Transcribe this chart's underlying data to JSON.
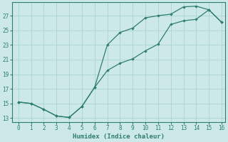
{
  "xlabel": "Humidex (Indice chaleur)",
  "ylabel": "",
  "background_color": "#cce9e7",
  "line_color": "#2e7d6e",
  "grid_color": "#aad4d0",
  "x_line1": [
    0,
    1,
    2,
    3,
    4,
    5,
    6,
    7,
    8,
    9,
    10,
    11,
    12,
    13,
    14,
    15,
    16
  ],
  "y_line1": [
    15.2,
    15.0,
    14.2,
    13.3,
    13.1,
    14.6,
    17.2,
    23.0,
    24.7,
    25.3,
    26.7,
    27.0,
    27.2,
    28.2,
    28.3,
    27.8,
    26.1
  ],
  "x_line2": [
    0,
    1,
    2,
    3,
    4,
    5,
    6,
    7,
    8,
    9,
    10,
    11,
    12,
    13,
    14,
    15,
    16
  ],
  "y_line2": [
    15.2,
    15.0,
    14.2,
    13.3,
    13.1,
    14.6,
    17.2,
    19.5,
    20.5,
    21.1,
    22.2,
    23.1,
    25.8,
    26.3,
    26.5,
    27.8,
    26.1
  ],
  "xlim": [
    0,
    16
  ],
  "ylim": [
    12.5,
    28.8
  ],
  "yticks": [
    13,
    15,
    17,
    19,
    21,
    23,
    25,
    27
  ],
  "xticks": [
    0,
    1,
    2,
    3,
    4,
    5,
    6,
    7,
    8,
    9,
    10,
    11,
    12,
    13,
    14,
    15,
    16
  ]
}
